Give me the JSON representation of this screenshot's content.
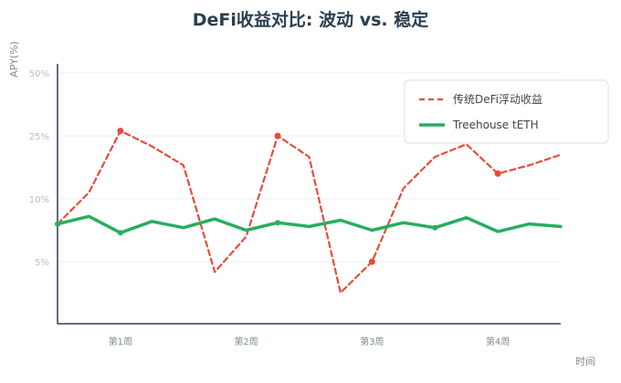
{
  "chart_data": {
    "type": "line",
    "title": "DeFi收益对比: 波动 vs. 稳定",
    "ylabel": "APY(%)",
    "xlabel": "时间",
    "y_tick_labels": [
      "5%",
      "10%",
      "25%",
      "50%"
    ],
    "x_tick_labels": [
      "第1周",
      "第2周",
      "第3周",
      "第4周"
    ],
    "x_tick_positions": [
      2,
      6,
      10,
      14
    ],
    "x_range": [
      0,
      16
    ],
    "grid": true,
    "legend_position": "top-right",
    "series": [
      {
        "name": "传统DeFi浮动收益",
        "color": "#e74c3c",
        "style": "dashed",
        "values": [
          8,
          11.5,
          27,
          22.5,
          18,
          3.5,
          7,
          25,
          20,
          0.5,
          5,
          12.5,
          20,
          23,
          16,
          18,
          20.5
        ],
        "markers": [
          2,
          7,
          10,
          14
        ]
      },
      {
        "name": "Treehouse tETH",
        "color": "#27ae60",
        "style": "solid",
        "values": [
          8,
          8.6,
          7.3,
          8.2,
          7.7,
          8.4,
          7.5,
          8.1,
          7.8,
          8.3,
          7.5,
          8.1,
          7.7,
          8.5,
          7.4,
          8.0,
          7.8
        ],
        "markers": [
          0,
          2,
          7,
          12
        ]
      }
    ]
  }
}
